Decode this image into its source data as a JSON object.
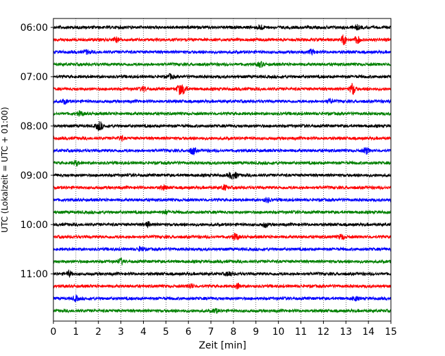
{
  "chart_data": {
    "type": "line",
    "title": "",
    "xlabel": "Zeit  [min]",
    "ylabel": "UTC (Lokalzeit = UTC + 01:00)",
    "xlim": [
      0,
      15
    ],
    "x_ticks": [
      "0",
      "1",
      "2",
      "3",
      "4",
      "5",
      "6",
      "7",
      "8",
      "9",
      "10",
      "11",
      "12",
      "13",
      "14",
      "15"
    ],
    "y_ticks": [
      "06:00",
      "07:00",
      "08:00",
      "09:00",
      "10:00",
      "11:00"
    ],
    "grid": "vertical dotted",
    "row_interval_minutes": 15,
    "first_row": "06:00",
    "colors_cycle": [
      "#000000",
      "#ff0000",
      "#0000ff",
      "#008000"
    ],
    "series": [
      {
        "start": "06:00",
        "color": "#000000",
        "events": [
          [
            9.2,
            1.6
          ],
          [
            13.5,
            1.2
          ]
        ]
      },
      {
        "start": "06:15",
        "color": "#ff0000",
        "events": [
          [
            2.8,
            1.3
          ],
          [
            12.9,
            3.0
          ],
          [
            13.5,
            2.2
          ]
        ]
      },
      {
        "start": "06:30",
        "color": "#0000ff",
        "events": [
          [
            1.5,
            1.1
          ],
          [
            11.5,
            1.4
          ]
        ]
      },
      {
        "start": "06:45",
        "color": "#008000",
        "events": [
          [
            9.2,
            1.5
          ]
        ]
      },
      {
        "start": "07:00",
        "color": "#000000",
        "events": [
          [
            5.2,
            1.3
          ]
        ]
      },
      {
        "start": "07:15",
        "color": "#ff0000",
        "events": [
          [
            4.0,
            1.4
          ],
          [
            5.6,
            2.8
          ],
          [
            5.8,
            2.5
          ],
          [
            13.3,
            3.5
          ]
        ]
      },
      {
        "start": "07:30",
        "color": "#0000ff",
        "events": [
          [
            0.5,
            1.2
          ],
          [
            12.3,
            1.2
          ]
        ]
      },
      {
        "start": "07:45",
        "color": "#008000",
        "events": [
          [
            1.2,
            1.3
          ]
        ]
      },
      {
        "start": "08:00",
        "color": "#000000",
        "events": [
          [
            2.0,
            1.6
          ],
          [
            2.1,
            1.4
          ]
        ]
      },
      {
        "start": "08:15",
        "color": "#ff0000",
        "events": [
          [
            3.0,
            1.2
          ]
        ]
      },
      {
        "start": "08:30",
        "color": "#0000ff",
        "events": [
          [
            6.2,
            2.2
          ],
          [
            13.9,
            1.8
          ]
        ]
      },
      {
        "start": "08:45",
        "color": "#008000",
        "events": [
          [
            1.0,
            1.3
          ]
        ]
      },
      {
        "start": "09:00",
        "color": "#000000",
        "events": [
          [
            7.9,
            1.6
          ],
          [
            8.1,
            1.4
          ]
        ]
      },
      {
        "start": "09:15",
        "color": "#ff0000",
        "events": [
          [
            4.9,
            1.3
          ],
          [
            7.6,
            1.5
          ]
        ]
      },
      {
        "start": "09:30",
        "color": "#0000ff",
        "events": [
          [
            9.5,
            1.2
          ]
        ]
      },
      {
        "start": "09:45",
        "color": "#008000",
        "events": [
          [
            5.0,
            1.1
          ]
        ]
      },
      {
        "start": "10:00",
        "color": "#000000",
        "events": [
          [
            4.2,
            1.5
          ],
          [
            9.4,
            1.4
          ]
        ]
      },
      {
        "start": "10:15",
        "color": "#ff0000",
        "events": [
          [
            8.1,
            2.0
          ],
          [
            12.8,
            1.5
          ]
        ]
      },
      {
        "start": "10:30",
        "color": "#0000ff",
        "events": [
          [
            3.9,
            1.3
          ]
        ]
      },
      {
        "start": "10:45",
        "color": "#008000",
        "events": [
          [
            3.0,
            1.5
          ]
        ]
      },
      {
        "start": "11:00",
        "color": "#000000",
        "events": [
          [
            0.7,
            1.5
          ],
          [
            7.8,
            1.3
          ]
        ]
      },
      {
        "start": "11:15",
        "color": "#ff0000",
        "events": [
          [
            8.2,
            1.5
          ],
          [
            6.1,
            1.3
          ]
        ]
      },
      {
        "start": "11:30",
        "color": "#0000ff",
        "events": [
          [
            1.0,
            1.5
          ],
          [
            13.4,
            1.3
          ]
        ]
      },
      {
        "start": "11:45",
        "color": "#008000",
        "events": [
          [
            7.2,
            1.1
          ]
        ]
      }
    ]
  }
}
